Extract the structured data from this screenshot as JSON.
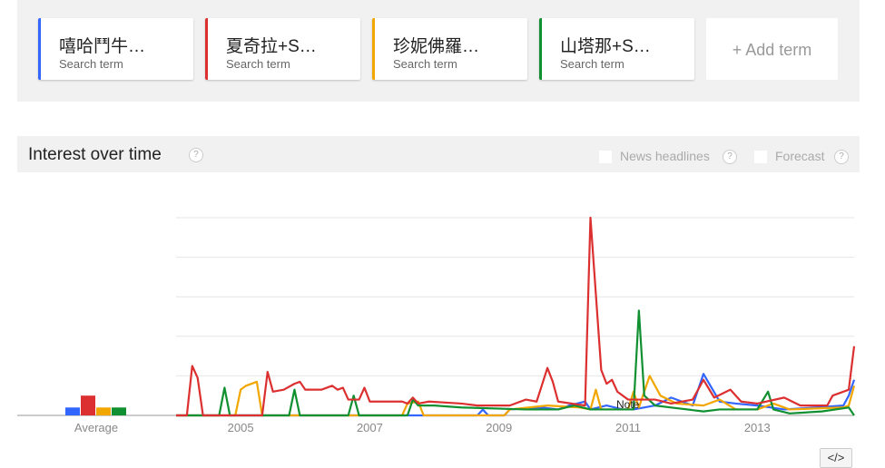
{
  "terms": [
    {
      "label": "嘻哈鬥牛…",
      "sub": "Search term",
      "color": "#3366ff"
    },
    {
      "label": "夏奇拉+S…",
      "sub": "Search term",
      "color": "#dc3030"
    },
    {
      "label": "珍妮佛羅…",
      "sub": "Search term",
      "color": "#f2a600"
    },
    {
      "label": "山塔那+S…",
      "sub": "Search term",
      "color": "#109030"
    }
  ],
  "add_term": "+ Add term",
  "section": {
    "title": "Interest over time",
    "help": "?",
    "news": "News headlines",
    "forecast": "Forecast"
  },
  "note": "Note",
  "embed": "</>",
  "chart_data": {
    "type": "line",
    "ylim": [
      0,
      100
    ],
    "grid": true,
    "x_range": [
      "2004-01",
      "2014-07"
    ],
    "xticks": [
      "2005",
      "2007",
      "2009",
      "2011",
      "2013"
    ],
    "average": {
      "label": "Average",
      "values": [
        4,
        10,
        4,
        4
      ]
    },
    "series": [
      {
        "color": "#3366ff",
        "points": [
          [
            "2004-01",
            0
          ],
          [
            "2008-09",
            0
          ],
          [
            "2008-10",
            3
          ],
          [
            "2008-11",
            0
          ],
          [
            "2009-02",
            0
          ],
          [
            "2009-03",
            3
          ],
          [
            "2009-09",
            4
          ],
          [
            "2009-12",
            3
          ],
          [
            "2010-02",
            5
          ],
          [
            "2010-05",
            7
          ],
          [
            "2010-06",
            3
          ],
          [
            "2010-09",
            5
          ],
          [
            "2010-12",
            3
          ],
          [
            "2011-02",
            3
          ],
          [
            "2011-06",
            5
          ],
          [
            "2011-09",
            9
          ],
          [
            "2012-01",
            5
          ],
          [
            "2012-03",
            21
          ],
          [
            "2012-06",
            7
          ],
          [
            "2012-09",
            6
          ],
          [
            "2013-01",
            5
          ],
          [
            "2013-06",
            3
          ],
          [
            "2013-12",
            4
          ],
          [
            "2014-05",
            5
          ],
          [
            "2014-06",
            10
          ],
          [
            "2014-07",
            18
          ]
        ]
      },
      {
        "color": "#f2a600",
        "points": [
          [
            "2004-01",
            0
          ],
          [
            "2004-12",
            0
          ],
          [
            "2005-01",
            13
          ],
          [
            "2005-02",
            15
          ],
          [
            "2005-04",
            17
          ],
          [
            "2005-05",
            0
          ],
          [
            "2007-07",
            0
          ],
          [
            "2007-08",
            6
          ],
          [
            "2007-10",
            7
          ],
          [
            "2007-11",
            0
          ],
          [
            "2009-02",
            0
          ],
          [
            "2009-03",
            3
          ],
          [
            "2009-10",
            5
          ],
          [
            "2010-04",
            4
          ],
          [
            "2010-06",
            3
          ],
          [
            "2010-07",
            13
          ],
          [
            "2010-08",
            3
          ],
          [
            "2011-01",
            3
          ],
          [
            "2011-02",
            12
          ],
          [
            "2011-03",
            4
          ],
          [
            "2011-05",
            20
          ],
          [
            "2011-07",
            10
          ],
          [
            "2011-10",
            6
          ],
          [
            "2012-03",
            5
          ],
          [
            "2012-06",
            8
          ],
          [
            "2012-09",
            3
          ],
          [
            "2013-01",
            3
          ],
          [
            "2013-04",
            6
          ],
          [
            "2013-07",
            3
          ],
          [
            "2014-05",
            4
          ],
          [
            "2014-06",
            5
          ],
          [
            "2014-07",
            15
          ]
        ]
      },
      {
        "color": "#109030",
        "points": [
          [
            "2004-01",
            0
          ],
          [
            "2004-09",
            0
          ],
          [
            "2004-10",
            14
          ],
          [
            "2004-11",
            0
          ],
          [
            "2005-10",
            0
          ],
          [
            "2005-11",
            13
          ],
          [
            "2005-12",
            0
          ],
          [
            "2006-09",
            0
          ],
          [
            "2006-10",
            10
          ],
          [
            "2006-11",
            0
          ],
          [
            "2007-08",
            0
          ],
          [
            "2007-09",
            8
          ],
          [
            "2007-10",
            5
          ],
          [
            "2008-01",
            5
          ],
          [
            "2008-06",
            4
          ],
          [
            "2009-06",
            3
          ],
          [
            "2009-12",
            3
          ],
          [
            "2010-03",
            5
          ],
          [
            "2010-06",
            3
          ],
          [
            "2011-02",
            3
          ],
          [
            "2011-03",
            53
          ],
          [
            "2011-04",
            10
          ],
          [
            "2011-06",
            5
          ],
          [
            "2011-09",
            4
          ],
          [
            "2012-03",
            2
          ],
          [
            "2012-06",
            3
          ],
          [
            "2013-01",
            3
          ],
          [
            "2013-03",
            12
          ],
          [
            "2013-04",
            3
          ],
          [
            "2013-07",
            1
          ],
          [
            "2014-01",
            2
          ],
          [
            "2014-06",
            4
          ],
          [
            "2014-07",
            0
          ]
        ]
      },
      {
        "color": "#dc3030",
        "points": [
          [
            "2004-01",
            0
          ],
          [
            "2004-03",
            0
          ],
          [
            "2004-04",
            25
          ],
          [
            "2004-05",
            19
          ],
          [
            "2004-06",
            0
          ],
          [
            "2005-05",
            0
          ],
          [
            "2005-06",
            22
          ],
          [
            "2005-07",
            12
          ],
          [
            "2005-09",
            13
          ],
          [
            "2005-11",
            16
          ],
          [
            "2005-12",
            17
          ],
          [
            "2006-01",
            13
          ],
          [
            "2006-04",
            13
          ],
          [
            "2006-06",
            15
          ],
          [
            "2006-07",
            13
          ],
          [
            "2006-08",
            14
          ],
          [
            "2006-09",
            8
          ],
          [
            "2006-11",
            8
          ],
          [
            "2006-12",
            14
          ],
          [
            "2007-01",
            7
          ],
          [
            "2007-07",
            7
          ],
          [
            "2007-08",
            6
          ],
          [
            "2007-09",
            9
          ],
          [
            "2007-10",
            6
          ],
          [
            "2007-12",
            7
          ],
          [
            "2008-06",
            6
          ],
          [
            "2008-09",
            5
          ],
          [
            "2009-03",
            5
          ],
          [
            "2009-06",
            8
          ],
          [
            "2009-08",
            7
          ],
          [
            "2009-10",
            24
          ],
          [
            "2009-11",
            17
          ],
          [
            "2009-12",
            7
          ],
          [
            "2010-05",
            5
          ],
          [
            "2010-06",
            100
          ],
          [
            "2010-08",
            23
          ],
          [
            "2010-09",
            16
          ],
          [
            "2010-10",
            18
          ],
          [
            "2010-11",
            12
          ],
          [
            "2011-01",
            8
          ],
          [
            "2011-06",
            8
          ],
          [
            "2011-09",
            6
          ],
          [
            "2012-01",
            8
          ],
          [
            "2012-03",
            18
          ],
          [
            "2012-05",
            9
          ],
          [
            "2012-08",
            13
          ],
          [
            "2012-10",
            7
          ],
          [
            "2013-01",
            6
          ],
          [
            "2013-06",
            9
          ],
          [
            "2013-09",
            5
          ],
          [
            "2014-02",
            5
          ],
          [
            "2014-03",
            10
          ],
          [
            "2014-06",
            13
          ],
          [
            "2014-07",
            35
          ]
        ]
      }
    ]
  }
}
